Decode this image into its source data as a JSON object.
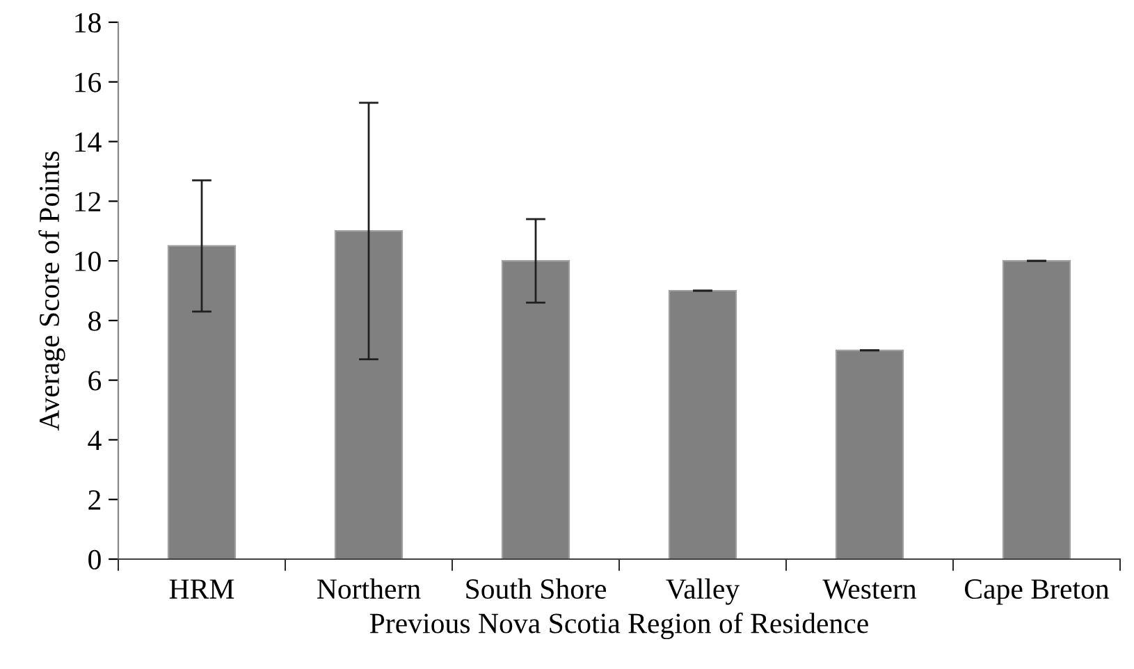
{
  "chart_data": {
    "type": "bar",
    "xlabel": "Previous Nova Scotia Region of Residence",
    "ylabel": "Average Score of Points",
    "categories": [
      "HRM",
      "Northern",
      "South Shore",
      "Valley",
      "Western",
      "Cape Breton"
    ],
    "values": [
      10.5,
      11,
      10,
      9,
      7,
      10
    ],
    "errors": [
      2.2,
      4.3,
      1.4,
      0,
      0,
      0
    ],
    "color": "#808080",
    "ylim": [
      0,
      18
    ],
    "yticks": [
      0,
      2,
      4,
      6,
      8,
      10,
      12,
      14,
      16,
      18
    ],
    "grid": false
  }
}
